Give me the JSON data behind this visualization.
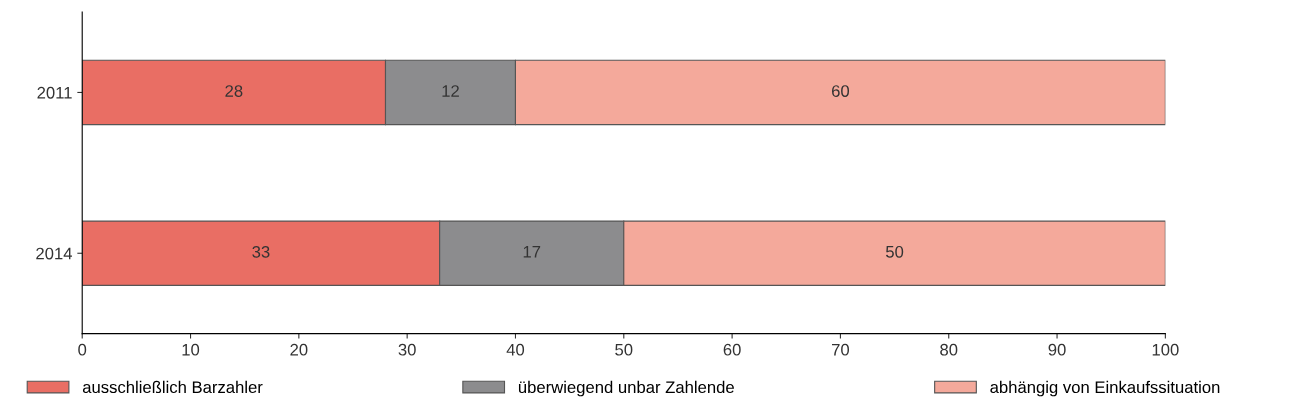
{
  "chart_data": {
    "type": "bar",
    "orientation": "horizontal",
    "stacked": true,
    "categories": [
      "2011",
      "2014"
    ],
    "series": [
      {
        "name": "ausschließlich Barzahler",
        "color": "#e96e64",
        "values": [
          28,
          33
        ]
      },
      {
        "name": "überwiegend unbar Zahlende",
        "color": "#8c8c8e",
        "values": [
          12,
          17
        ]
      },
      {
        "name": "abhängig von Einkaufssituation",
        "color": "#f4a99b",
        "values": [
          60,
          50
        ]
      }
    ],
    "xlim": [
      0,
      100
    ],
    "xticks": [
      0,
      10,
      20,
      30,
      40,
      50,
      60,
      70,
      80,
      90,
      100
    ],
    "data_labels": true,
    "legend": "bottom",
    "grid": false
  }
}
